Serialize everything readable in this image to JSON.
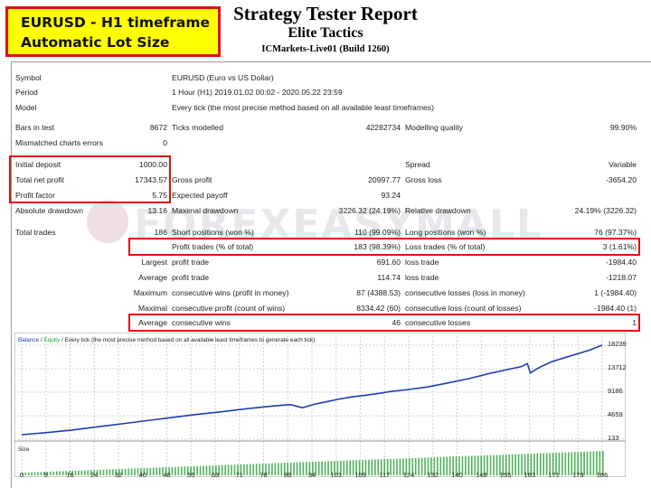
{
  "badge": {
    "line1": "EURUSD - H1 timeframe",
    "line2": "Automatic Lot Size"
  },
  "header": {
    "title": "Strategy Tester Report",
    "subtitle": "Elite Tactics",
    "server": "ICMarkets-Live01 (Build 1260)"
  },
  "watermark": {
    "text": "FOREXEASYMALL"
  },
  "info": {
    "symbol_label": "Symbol",
    "symbol_value": "EURUSD (Euro vs US Dollar)",
    "period_label": "Period",
    "period_value": "1 Hour (H1) 2019.01.02 00:02 - 2020.05.22 23:59",
    "model_label": "Model",
    "model_value": "Every tick (the most precise method based on all available least timeframes)"
  },
  "stats": {
    "bars_label": "Bars in test",
    "bars_value": "8672",
    "ticks_label": "Ticks modelled",
    "ticks_value": "42282734",
    "quality_label": "Modelling quality",
    "quality_value": "99.90%",
    "mismatch_label": "Mismatched charts errors",
    "mismatch_value": "0",
    "deposit_label": "Initial deposit",
    "deposit_value": "1000.00",
    "spread_label": "Spread",
    "spread_value": "Variable",
    "net_label": "Total net profit",
    "net_value": "17343.57",
    "gp_label": "Gross profit",
    "gp_value": "20997.77",
    "gl_label": "Gross loss",
    "gl_value": "-3654.20",
    "pf_label": "Profit factor",
    "pf_value": "5.75",
    "ep_label": "Expected payoff",
    "ep_value": "93.24",
    "ad_label": "Absolute drawdown",
    "ad_value": "13.16",
    "md_label": "Maximal drawdown",
    "md_value": "3226.32 (24.19%)",
    "rd_label": "Relative drawdown",
    "rd_value": "24.19% (3226.32)",
    "tt_label": "Total trades",
    "tt_value": "186",
    "sp_label": "Short positions (won %)",
    "sp_value": "110 (99.09%)",
    "lp_label": "Long positions (won %)",
    "lp_value": "76 (97.37%)",
    "pt_label": "Profit trades (% of total)",
    "pt_value": "183 (98.39%)",
    "lt_label": "Loss trades (% of total)",
    "lt_value": "3 (1.61%)",
    "largest": "Largest",
    "average": "Average",
    "maximum": "Maximum",
    "maximal": "Maximal",
    "lpt_label": "profit trade",
    "lpt_value": "691.60",
    "llt_label": "loss trade",
    "llt_value": "-1984.40",
    "apt_label": "profit trade",
    "apt_value": "114.74",
    "alt_label": "loss trade",
    "alt_value": "-1218.07",
    "mcw_label": "consecutive wins (profit in money)",
    "mcw_value": "87 (4388.53)",
    "mcl_label": "consecutive losses (loss in money)",
    "mcl_value": "1 (-1984.40)",
    "mcp_label": "consecutive profit (count of wins)",
    "mcp_value": "8334.42 (60)",
    "mclc_label": "consecutive loss (count of losses)",
    "mclc_value": "-1984.40 (1)",
    "acw_label": "consecutive wins",
    "acw_value": "46",
    "acl_label": "consecutive losses",
    "acl_value": "1"
  },
  "chart_legend": {
    "balance": "Balance",
    "sep": " / ",
    "equity": "Equity",
    "rest": " / Every tick (the most precise method based on all available least timeframes to generate each tick)"
  },
  "size_label": "Size",
  "chart_data": {
    "type": "line",
    "y_ticks": [
      "18239",
      "13712",
      "9186",
      "4659",
      "133"
    ],
    "x_ticks": [
      "0",
      "9",
      "16",
      "24",
      "32",
      "40",
      "48",
      "55",
      "63",
      "71",
      "78",
      "86",
      "94",
      "101",
      "109",
      "117",
      "124",
      "132",
      "140",
      "148",
      "155",
      "163",
      "171",
      "179",
      "186"
    ],
    "x": [
      0,
      8,
      16,
      24,
      32,
      40,
      48,
      56,
      64,
      72,
      80,
      86,
      90,
      94,
      98,
      102,
      106,
      110,
      114,
      118,
      124,
      130,
      136,
      140,
      144,
      150,
      156,
      160,
      162,
      163,
      164,
      166,
      170,
      176,
      182,
      186
    ],
    "series": [
      {
        "name": "Balance",
        "color": "#1f3fb0",
        "values": [
          1000,
          1400,
          1900,
          2500,
          3100,
          3700,
          4300,
          4900,
          5400,
          6000,
          6500,
          6800,
          6200,
          6900,
          7400,
          7900,
          8300,
          8600,
          8900,
          9300,
          9700,
          10200,
          10900,
          11400,
          11900,
          12800,
          13600,
          14100,
          14700,
          12900,
          13300,
          14000,
          15100,
          16200,
          17300,
          18239
        ]
      }
    ],
    "ylim": [
      133,
      18239
    ],
    "grid": true,
    "legend_placement": "top-left"
  },
  "colors": {
    "highlight": "#e01010",
    "badge": "#ffff00",
    "balance": "#1f3fb0",
    "size_bars": "#20a030"
  }
}
